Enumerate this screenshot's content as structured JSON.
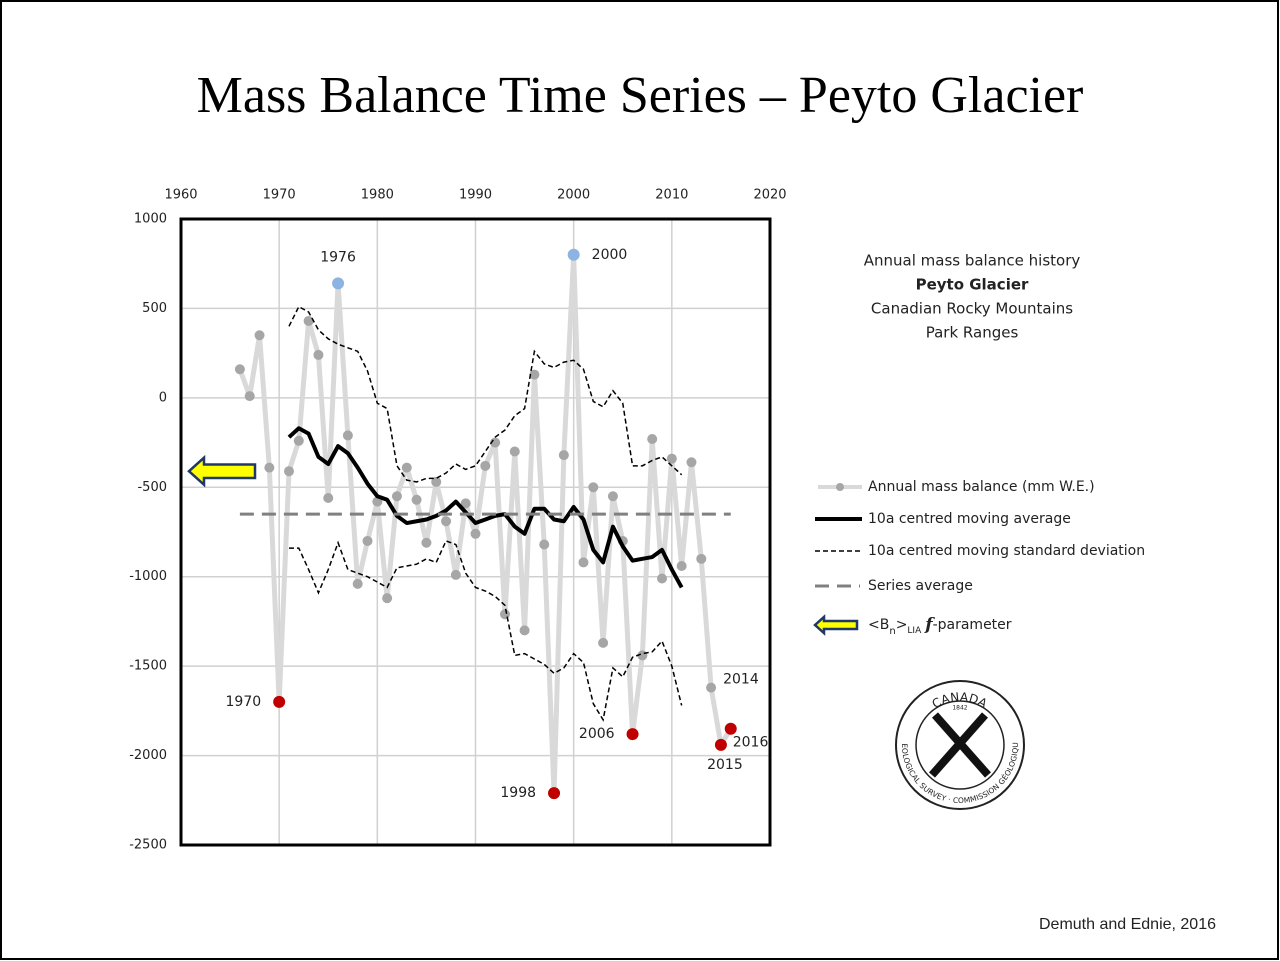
{
  "chart_data": {
    "type": "line",
    "title": "Mass Balance Time Series – Peyto Glacier",
    "xlim": [
      1960,
      2020
    ],
    "xticks": [
      1960,
      1970,
      1980,
      1990,
      2000,
      2010,
      2020
    ],
    "ylim": [
      -2500,
      1000
    ],
    "yticks": [
      1000,
      500,
      0,
      -500,
      -1000,
      -1500,
      -2000,
      -2500
    ],
    "grid": true,
    "series": [
      {
        "name": "Annual mass balance (mm W.E.)",
        "color": "#d9d9d9",
        "marker_color": "#a6a6a6",
        "x": [
          1966,
          1967,
          1968,
          1969,
          1970,
          1971,
          1972,
          1973,
          1974,
          1975,
          1976,
          1977,
          1978,
          1979,
          1980,
          1981,
          1982,
          1983,
          1984,
          1985,
          1986,
          1987,
          1988,
          1989,
          1990,
          1991,
          1992,
          1993,
          1994,
          1995,
          1996,
          1997,
          1998,
          1999,
          2000,
          2001,
          2002,
          2003,
          2004,
          2005,
          2006,
          2007,
          2008,
          2009,
          2010,
          2011,
          2012,
          2013,
          2014,
          2015,
          2016
        ],
        "values": [
          160,
          10,
          350,
          -390,
          -1700,
          -410,
          -240,
          430,
          240,
          -560,
          640,
          -210,
          -1040,
          -800,
          -580,
          -1120,
          -550,
          -390,
          -570,
          -810,
          -470,
          -690,
          -990,
          -590,
          -760,
          -380,
          -250,
          -1210,
          -300,
          -1300,
          130,
          -820,
          -2210,
          -320,
          800,
          -920,
          -500,
          -1370,
          -550,
          -800,
          -1880,
          -1440,
          -230,
          -1010,
          -340,
          -940,
          -360,
          -900,
          -1620,
          -1940,
          -1850
        ]
      },
      {
        "name": "10a centred moving average",
        "color": "#000000",
        "x": [
          1971,
          1972,
          1973,
          1974,
          1975,
          1976,
          1977,
          1978,
          1979,
          1980,
          1981,
          1982,
          1983,
          1984,
          1985,
          1986,
          1987,
          1988,
          1989,
          1990,
          1991,
          1992,
          1993,
          1994,
          1995,
          1996,
          1997,
          1998,
          1999,
          2000,
          2001,
          2002,
          2003,
          2004,
          2005,
          2006,
          2007,
          2008,
          2009,
          2010,
          2011
        ],
        "values": [
          -220,
          -170,
          -200,
          -330,
          -370,
          -270,
          -310,
          -390,
          -480,
          -550,
          -570,
          -660,
          -700,
          -690,
          -680,
          -660,
          -630,
          -580,
          -640,
          -700,
          -680,
          -660,
          -650,
          -720,
          -760,
          -620,
          -620,
          -680,
          -690,
          -610,
          -680,
          -850,
          -920,
          -720,
          -830,
          -910,
          -900,
          -890,
          -850,
          -960,
          -1060
        ]
      },
      {
        "name": "10a centred moving standard deviation",
        "color": "#000000",
        "x": [
          1971,
          1972,
          1973,
          1974,
          1975,
          1976,
          1977,
          1978,
          1979,
          1980,
          1981,
          1982,
          1983,
          1984,
          1985,
          1986,
          1987,
          1988,
          1989,
          1990,
          1991,
          1992,
          1993,
          1994,
          1995,
          1996,
          1997,
          1998,
          1999,
          2000,
          2001,
          2002,
          2003,
          2004,
          2005,
          2006,
          2007,
          2008,
          2009,
          2010,
          2011
        ],
        "upper": [
          400,
          510,
          480,
          380,
          330,
          300,
          280,
          260,
          150,
          -30,
          -60,
          -380,
          -460,
          -470,
          -450,
          -450,
          -420,
          -370,
          -400,
          -380,
          -300,
          -220,
          -180,
          -100,
          -60,
          260,
          190,
          170,
          200,
          210,
          160,
          -20,
          -50,
          40,
          -30,
          -380,
          -380,
          -350,
          -330,
          -380,
          -430
        ],
        "lower": [
          -840,
          -840,
          -960,
          -1090,
          -960,
          -810,
          -960,
          -980,
          -1000,
          -1030,
          -1060,
          -950,
          -940,
          -930,
          -900,
          -920,
          -800,
          -820,
          -980,
          -1060,
          -1080,
          -1110,
          -1160,
          -1440,
          -1430,
          -1460,
          -1490,
          -1540,
          -1510,
          -1430,
          -1480,
          -1710,
          -1800,
          -1510,
          -1560,
          -1450,
          -1430,
          -1420,
          -1360,
          -1500,
          -1720
        ]
      },
      {
        "name": "Series average",
        "color": "#808080",
        "value": -650,
        "xrange": [
          1966,
          2016
        ]
      }
    ],
    "f_parameter": {
      "name_parts": [
        "<B",
        "n",
        ">",
        "LIA",
        "f",
        "-parameter"
      ],
      "value": -410,
      "color": "#ffff00",
      "stroke": "#1f3864"
    },
    "highlights": [
      {
        "x": 1970,
        "color": "#c00000"
      },
      {
        "x": 1976,
        "color": "#8db3e2"
      },
      {
        "x": 1998,
        "color": "#c00000"
      },
      {
        "x": 2000,
        "color": "#8db3e2"
      },
      {
        "x": 2006,
        "color": "#c00000"
      },
      {
        "x": 2014
      },
      {
        "x": 2015,
        "color": "#c00000"
      },
      {
        "x": 2016,
        "color": "#c00000"
      }
    ],
    "info": [
      "Annual mass balance history",
      "Peyto Glacier",
      "Canadian Rocky Mountains",
      "Park Ranges"
    ],
    "logo": {
      "top": "CANADA",
      "year": "1842",
      "ring": "GEOLOGICAL SURVEY · COMMISSION GÉOLOGIQUE"
    },
    "source": "Demuth and Ednie, 2016"
  }
}
